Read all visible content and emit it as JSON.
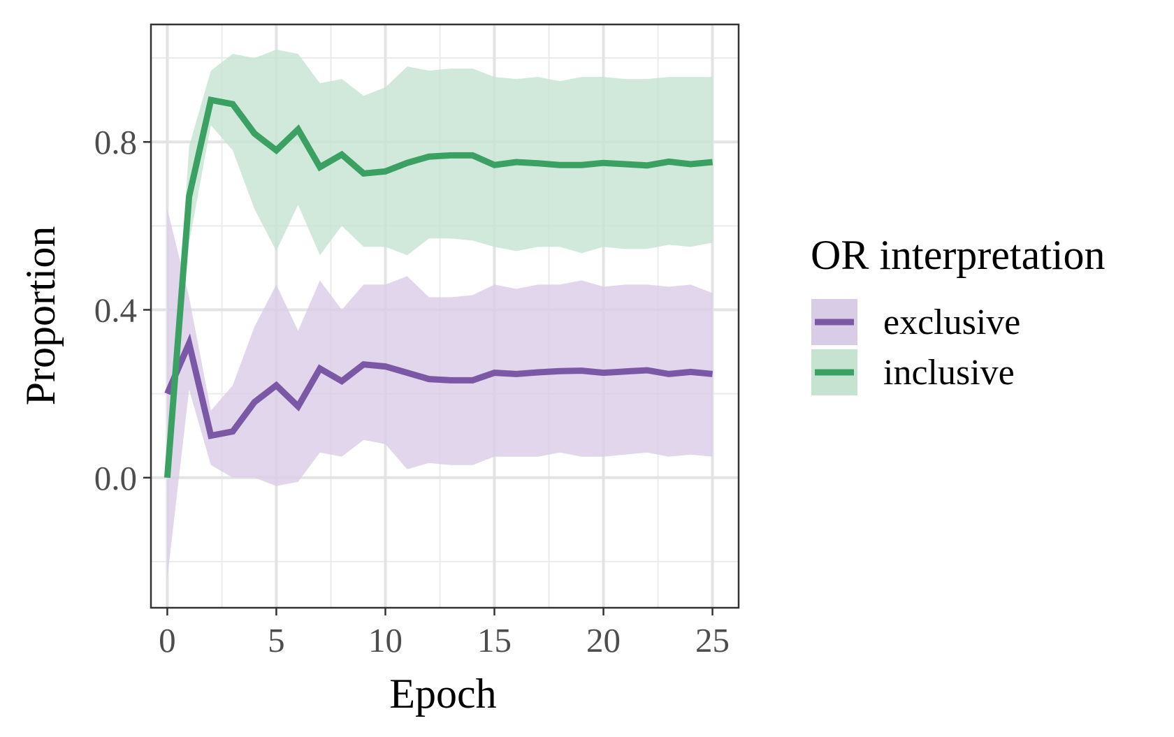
{
  "chart_data": {
    "type": "line",
    "title": "",
    "xlabel": "Epoch",
    "ylabel": "Proportion",
    "xlim": [
      -0.75,
      26.2
    ],
    "ylim": [
      -0.31,
      1.08
    ],
    "x_ticks": [
      0,
      5,
      10,
      15,
      20,
      25
    ],
    "x_tick_labels": [
      "0",
      "5",
      "10",
      "15",
      "20",
      "25"
    ],
    "y_ticks": [
      0.0,
      0.4,
      0.8
    ],
    "y_tick_labels": [
      "0.0",
      "0.4",
      "0.8"
    ],
    "grid": true,
    "legend": {
      "title": "OR interpretation",
      "position": "right"
    },
    "x": [
      0,
      1,
      2,
      3,
      4,
      5,
      6,
      7,
      8,
      9,
      10,
      11,
      12,
      13,
      14,
      15,
      16,
      17,
      18,
      19,
      20,
      21,
      22,
      23,
      24,
      25
    ],
    "series": [
      {
        "name": "exclusive",
        "color": "#7B58A6",
        "band_color": "#D9CCE6",
        "values": [
          0.2,
          0.32,
          0.1,
          0.11,
          0.18,
          0.22,
          0.17,
          0.26,
          0.23,
          0.27,
          0.265,
          0.25,
          0.235,
          0.232,
          0.232,
          0.25,
          0.247,
          0.251,
          0.254,
          0.255,
          0.25,
          0.253,
          0.256,
          0.247,
          0.252,
          0.247
        ],
        "lower": [
          -0.24,
          0.21,
          0.03,
          0.0,
          0.0,
          -0.02,
          -0.01,
          0.06,
          0.05,
          0.09,
          0.08,
          0.02,
          0.035,
          0.03,
          0.03,
          0.05,
          0.05,
          0.05,
          0.06,
          0.05,
          0.05,
          0.055,
          0.06,
          0.05,
          0.055,
          0.05
        ],
        "upper": [
          0.64,
          0.43,
          0.16,
          0.22,
          0.36,
          0.46,
          0.35,
          0.47,
          0.4,
          0.46,
          0.46,
          0.48,
          0.43,
          0.43,
          0.435,
          0.46,
          0.45,
          0.46,
          0.46,
          0.47,
          0.455,
          0.46,
          0.46,
          0.455,
          0.46,
          0.44
        ]
      },
      {
        "name": "inclusive",
        "color": "#3BA163",
        "band_color": "#C6E3D2",
        "values": [
          0.0,
          0.67,
          0.9,
          0.89,
          0.82,
          0.78,
          0.83,
          0.74,
          0.77,
          0.725,
          0.73,
          0.75,
          0.765,
          0.768,
          0.768,
          0.745,
          0.752,
          0.749,
          0.745,
          0.745,
          0.75,
          0.747,
          0.744,
          0.753,
          0.747,
          0.752
        ],
        "lower": [
          0.0,
          0.56,
          0.84,
          0.78,
          0.64,
          0.54,
          0.65,
          0.53,
          0.6,
          0.55,
          0.55,
          0.53,
          0.57,
          0.57,
          0.565,
          0.55,
          0.54,
          0.55,
          0.55,
          0.535,
          0.55,
          0.545,
          0.545,
          0.555,
          0.55,
          0.56
        ],
        "upper": [
          0.0,
          0.79,
          0.97,
          1.01,
          1.0,
          1.02,
          1.01,
          0.94,
          0.95,
          0.91,
          0.93,
          0.98,
          0.97,
          0.975,
          0.975,
          0.955,
          0.95,
          0.955,
          0.945,
          0.955,
          0.955,
          0.95,
          0.95,
          0.955,
          0.955,
          0.955
        ]
      }
    ]
  }
}
